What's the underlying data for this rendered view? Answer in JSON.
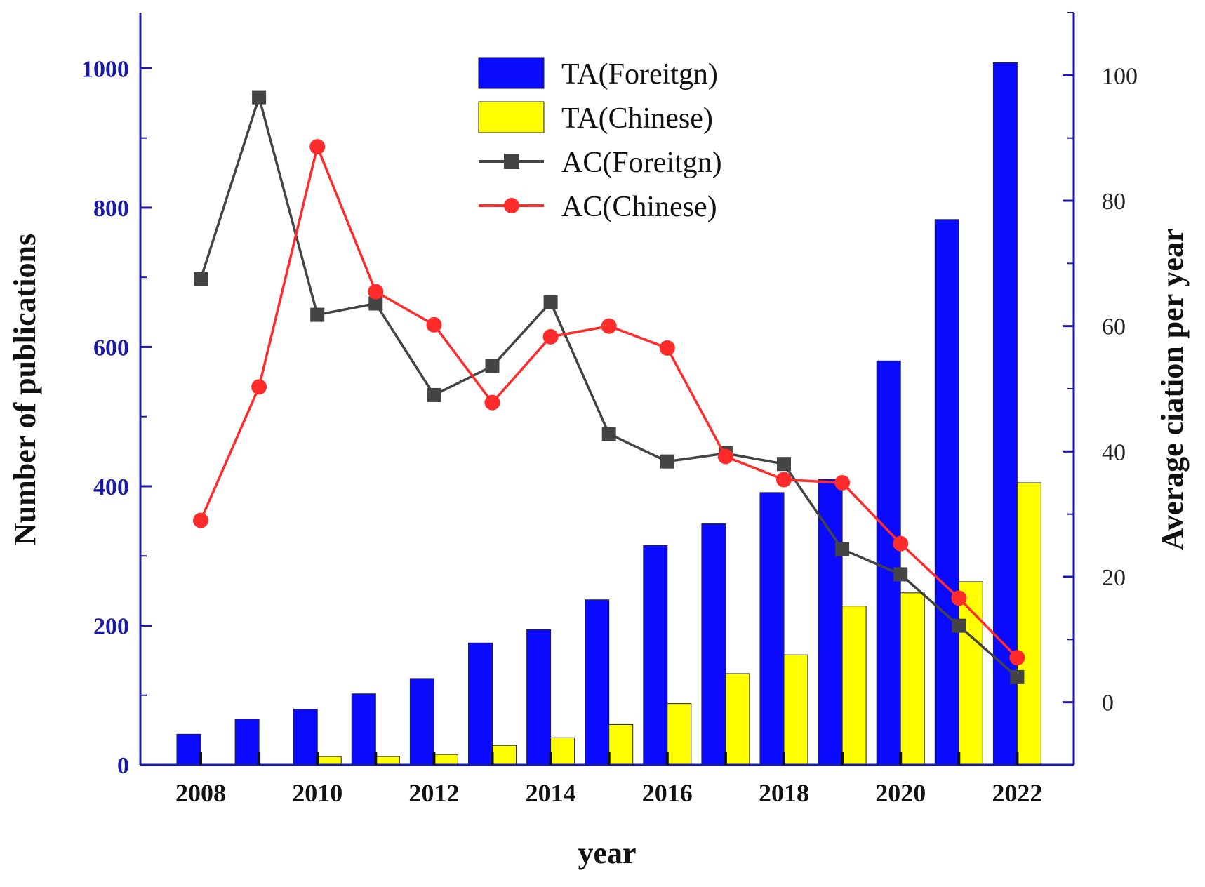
{
  "chart_data": {
    "type": "bar",
    "categories": [
      "2008",
      "2009",
      "2010",
      "2011",
      "2012",
      "2013",
      "2014",
      "2015",
      "2016",
      "2017",
      "2018",
      "2019",
      "2020",
      "2021",
      "2022"
    ],
    "xticks": [
      "2008",
      "2010",
      "2012",
      "2014",
      "2016",
      "2018",
      "2020",
      "2022"
    ],
    "xlabel": "year",
    "ylabel_left": "Number of publications",
    "ylabel_right": "Average ciation per year",
    "ylim_left": [
      0,
      1080
    ],
    "yticks_left": [
      "0",
      "200",
      "400",
      "600",
      "800",
      "1000"
    ],
    "ylim_right": [
      -10,
      110
    ],
    "yticks_right": [
      "0",
      "20",
      "40",
      "60",
      "80",
      "100"
    ],
    "legend_position": "top-center",
    "series": [
      {
        "name": "TA(Foreitgn)",
        "type": "bar",
        "axis": "left",
        "color": "#0a0aff",
        "values": [
          44,
          66,
          80,
          102,
          124,
          175,
          194,
          237,
          315,
          346,
          391,
          410,
          580,
          783,
          1008
        ]
      },
      {
        "name": "TA(Chinese)",
        "type": "bar",
        "axis": "left",
        "color": "#ffff00",
        "values": [
          0,
          0,
          12,
          12,
          15,
          28,
          39,
          58,
          88,
          131,
          158,
          228,
          247,
          263,
          405
        ]
      },
      {
        "name": "AC(Foreitgn)",
        "type": "line",
        "marker": "square",
        "axis": "right",
        "color": "#444444",
        "values": [
          67.5,
          96.5,
          61.8,
          63.6,
          49.0,
          53.6,
          63.8,
          42.8,
          38.4,
          39.7,
          38.0,
          24.4,
          20.4,
          12.2,
          4.0
        ]
      },
      {
        "name": "AC(Chinese)",
        "type": "line",
        "marker": "circle",
        "axis": "right",
        "color": "#ff2a2a",
        "values": [
          29.0,
          50.3,
          88.6,
          65.5,
          60.2,
          47.8,
          58.3,
          60.0,
          56.5,
          39.2,
          35.5,
          35.0,
          25.3,
          16.6,
          7.1
        ]
      }
    ]
  }
}
